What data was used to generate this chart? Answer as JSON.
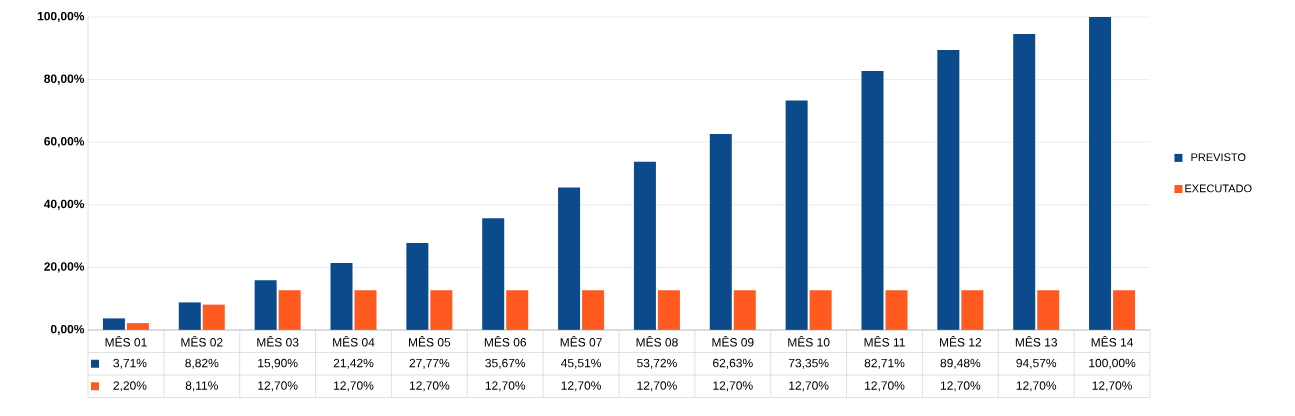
{
  "chart_data": {
    "type": "bar",
    "categories": [
      "MÊS 01",
      "MÊS 02",
      "MÊS 03",
      "MÊS 04",
      "MÊS 05",
      "MÊS 06",
      "MÊS 07",
      "MÊS 08",
      "MÊS 09",
      "MÊS 10",
      "MÊS 11",
      "MÊS 12",
      "MÊS 13",
      "MÊS 14"
    ],
    "series": [
      {
        "name": "PREVISTO",
        "color": "#0b4a8b",
        "values": [
          3.71,
          8.82,
          15.9,
          21.42,
          27.77,
          35.67,
          45.51,
          53.72,
          62.63,
          73.35,
          82.71,
          89.48,
          94.57,
          100.0
        ],
        "value_labels": [
          "3,71%",
          "8,82%",
          "15,90%",
          "21,42%",
          "27,77%",
          "35,67%",
          "45,51%",
          "53,72%",
          "62,63%",
          "73,35%",
          "82,71%",
          "89,48%",
          "94,57%",
          "100,00%"
        ]
      },
      {
        "name": "EXECUTADO",
        "color": "#ff5a1f",
        "values": [
          2.2,
          8.11,
          12.7,
          12.7,
          12.7,
          12.7,
          12.7,
          12.7,
          12.7,
          12.7,
          12.7,
          12.7,
          12.7,
          12.7
        ],
        "value_labels": [
          "2,20%",
          "8,11%",
          "12,70%",
          "12,70%",
          "12,70%",
          "12,70%",
          "12,70%",
          "12,70%",
          "12,70%",
          "12,70%",
          "12,70%",
          "12,70%",
          "12,70%",
          "12,70%"
        ]
      }
    ],
    "ylim": [
      0,
      100
    ],
    "yticks": [
      {
        "value": 0,
        "label": "0,00%"
      },
      {
        "value": 20,
        "label": "20,00%"
      },
      {
        "value": 40,
        "label": "40,00%"
      },
      {
        "value": 60,
        "label": "60,00%"
      },
      {
        "value": 80,
        "label": "80,00%"
      },
      {
        "value": 100,
        "label": "100,00%"
      }
    ],
    "grid": "y",
    "legend": "right"
  }
}
